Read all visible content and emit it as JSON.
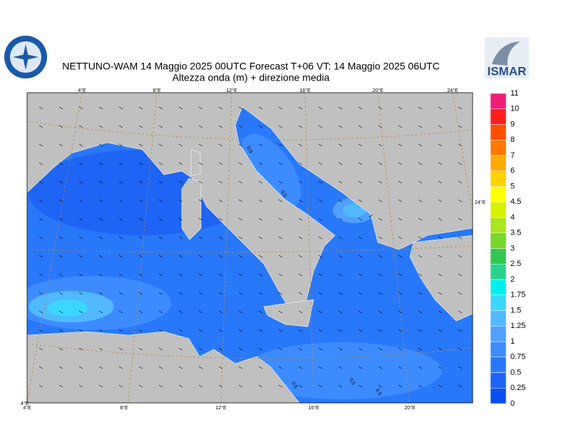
{
  "header": {
    "title": "NETTUNO-WAM  14   Maggio  2025 00UTC Forecast T+06 VT: 14   Maggio  2025 06UTC",
    "subtitle": "Altezza onda (m) + direzione media",
    "logo_text": "ISMAR"
  },
  "map": {
    "top_lon_labels": [
      "4°E",
      "8°E",
      "12°E",
      "16°E",
      "20°E",
      "24°E"
    ],
    "bottom_lon_labels": [
      "4°E",
      "8°E",
      "12°E",
      "16°E",
      "20°E"
    ],
    "right_lon_label": "24°E",
    "corner_label": "4°E",
    "contour_labels": [
      "0.5",
      "0.5",
      "1",
      "0.5",
      "0.5",
      "0.5"
    ]
  },
  "colorbar": {
    "levels": [
      0,
      0.25,
      0.5,
      0.75,
      1,
      1.25,
      1.5,
      1.75,
      2,
      2.5,
      3,
      3.5,
      4,
      4.5,
      5,
      6,
      7,
      8,
      9,
      10,
      11
    ],
    "colors": [
      "#0a50f0",
      "#1e64f5",
      "#2878fa",
      "#3c8cff",
      "#50a0ff",
      "#50b9ff",
      "#3cd7ff",
      "#00f0f0",
      "#28d28c",
      "#32c850",
      "#78d728",
      "#aae61e",
      "#d7f000",
      "#ffff00",
      "#ffd200",
      "#ffaa00",
      "#ff7800",
      "#ff5000",
      "#ff1e1e",
      "#f01e78",
      "#ff14c8"
    ]
  }
}
